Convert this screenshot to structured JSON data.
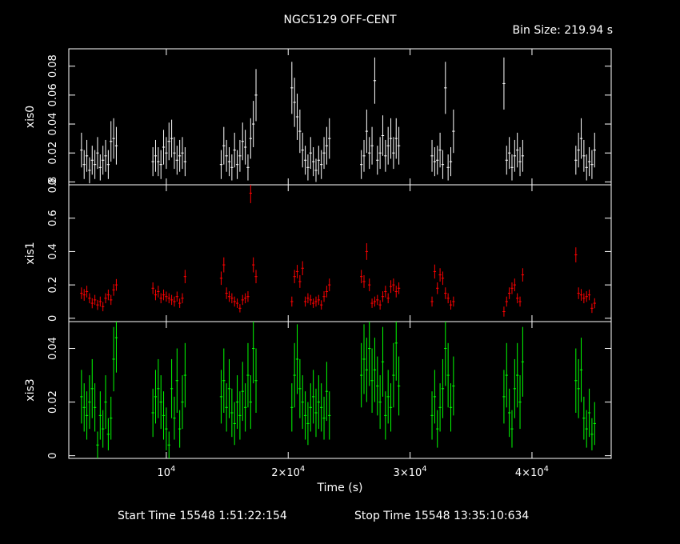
{
  "title": "NGC5129 OFF-CENT",
  "bin_size": "Bin Size: 219.94 s",
  "footer": {
    "start": "Start Time 15548  1:51:22:154",
    "stop": "Stop Time 15548 13:35:10:634"
  },
  "colors": {
    "xis0": "#ffffff",
    "xis1": "#ff0000",
    "xis3": "#00ff00",
    "frame": "#ffffff",
    "background": "#000000"
  },
  "chart_data": {
    "type": "scatter",
    "xlabel": "Time (s)",
    "xlim": [
      2000,
      46500
    ],
    "x_ticks": [
      {
        "value": 10000,
        "label": "10^4"
      },
      {
        "value": 20000,
        "label": "2×10^4"
      },
      {
        "value": 30000,
        "label": "3×10^4"
      },
      {
        "value": 40000,
        "label": "4×10^4"
      }
    ],
    "panels": [
      {
        "name": "xis0",
        "ylabel": "xis0",
        "ylim": [
          -0.002,
          0.092
        ],
        "y_ticks": [
          {
            "value": 0,
            "label": "0"
          },
          {
            "value": 0.02,
            "label": "0.02"
          },
          {
            "value": 0.04,
            "label": "0.04"
          },
          {
            "value": 0.06,
            "label": "0.06"
          },
          {
            "value": 0.08,
            "label": "0.08"
          }
        ],
        "x": [
          3040,
          3260,
          3480,
          3700,
          3920,
          4140,
          4360,
          4580,
          4800,
          5020,
          5240,
          5460,
          5680,
          5900,
          8900,
          9120,
          9340,
          9560,
          9780,
          10000,
          10220,
          10440,
          10660,
          10880,
          11100,
          11320,
          11540,
          14500,
          14720,
          14940,
          15160,
          15380,
          15600,
          15820,
          16040,
          16260,
          16480,
          16700,
          16920,
          17140,
          17360,
          20300,
          20520,
          20740,
          20960,
          21180,
          21400,
          21620,
          21840,
          22060,
          22280,
          22500,
          22720,
          22940,
          23160,
          23380,
          26000,
          26220,
          26440,
          26660,
          26880,
          27100,
          27320,
          27540,
          27760,
          27980,
          28200,
          28420,
          28640,
          28860,
          29080,
          31800,
          32020,
          32240,
          32460,
          32680,
          32900,
          33120,
          33340,
          33560,
          37700,
          37920,
          38140,
          38360,
          38580,
          38800,
          39020,
          39240,
          43600,
          43820,
          44040,
          44260,
          44480,
          44700,
          44920,
          45140
        ],
        "y": [
          0.022,
          0.012,
          0.018,
          0.008,
          0.015,
          0.012,
          0.02,
          0.01,
          0.015,
          0.018,
          0.012,
          0.028,
          0.03,
          0.025,
          0.014,
          0.018,
          0.014,
          0.012,
          0.024,
          0.02,
          0.028,
          0.03,
          0.02,
          0.015,
          0.018,
          0.02,
          0.014,
          0.012,
          0.025,
          0.018,
          0.014,
          0.01,
          0.022,
          0.012,
          0.018,
          0.028,
          0.024,
          0.01,
          0.03,
          0.04,
          0.06,
          0.065,
          0.055,
          0.045,
          0.035,
          0.022,
          0.015,
          0.01,
          0.02,
          0.014,
          0.008,
          0.015,
          0.012,
          0.02,
          0.025,
          0.03,
          0.012,
          0.018,
          0.035,
          0.02,
          0.025,
          0.07,
          0.015,
          0.02,
          0.032,
          0.018,
          0.025,
          0.03,
          0.02,
          0.03,
          0.025,
          0.018,
          0.014,
          0.015,
          0.022,
          0.012,
          0.065,
          0.01,
          0.014,
          0.035,
          0.068,
          0.015,
          0.02,
          0.01,
          0.018,
          0.022,
          0.014,
          0.018,
          0.015,
          0.022,
          0.03,
          0.018,
          0.01,
          0.014,
          0.012,
          0.022
        ],
        "yerr": [
          0.012,
          0.01,
          0.011,
          0.009,
          0.01,
          0.01,
          0.011,
          0.009,
          0.01,
          0.011,
          0.01,
          0.014,
          0.014,
          0.013,
          0.01,
          0.011,
          0.01,
          0.01,
          0.012,
          0.011,
          0.013,
          0.013,
          0.011,
          0.01,
          0.011,
          0.011,
          0.01,
          0.01,
          0.013,
          0.011,
          0.01,
          0.009,
          0.012,
          0.01,
          0.011,
          0.013,
          0.012,
          0.009,
          0.014,
          0.016,
          0.018,
          0.018,
          0.017,
          0.016,
          0.015,
          0.012,
          0.01,
          0.009,
          0.011,
          0.01,
          0.008,
          0.01,
          0.01,
          0.011,
          0.013,
          0.014,
          0.01,
          0.011,
          0.015,
          0.011,
          0.013,
          0.016,
          0.01,
          0.011,
          0.014,
          0.011,
          0.013,
          0.014,
          0.011,
          0.014,
          0.013,
          0.011,
          0.01,
          0.01,
          0.012,
          0.01,
          0.018,
          0.009,
          0.01,
          0.015,
          0.018,
          0.01,
          0.011,
          0.009,
          0.011,
          0.012,
          0.01,
          0.011,
          0.01,
          0.012,
          0.014,
          0.011,
          0.009,
          0.01,
          0.01,
          0.012
        ]
      },
      {
        "name": "xis1",
        "ylabel": "xis1",
        "ylim": [
          -0.02,
          0.8
        ],
        "y_ticks": [
          {
            "value": 0,
            "label": "0"
          },
          {
            "value": 0.2,
            "label": "0.2"
          },
          {
            "value": 0.4,
            "label": "0.4"
          },
          {
            "value": 0.6,
            "label": "0.6"
          },
          {
            "value": 0.8,
            "label": "0.8"
          }
        ],
        "x": [
          3040,
          3260,
          3480,
          3700,
          3920,
          4140,
          4360,
          4580,
          4800,
          5020,
          5240,
          5460,
          5680,
          5900,
          8900,
          9120,
          9340,
          9560,
          9780,
          10000,
          10220,
          10440,
          10660,
          10880,
          11100,
          11320,
          11540,
          14500,
          14720,
          14940,
          15160,
          15380,
          15600,
          15820,
          16040,
          16260,
          16480,
          16700,
          16920,
          17140,
          17360,
          20300,
          20520,
          20740,
          20960,
          21180,
          21400,
          21620,
          21840,
          22060,
          22280,
          22500,
          22720,
          22940,
          23160,
          23380,
          26000,
          26220,
          26440,
          26660,
          26880,
          27100,
          27320,
          27540,
          27760,
          27980,
          28200,
          28420,
          28640,
          28860,
          29080,
          31800,
          32020,
          32240,
          32460,
          32680,
          32900,
          33120,
          33340,
          33560,
          37700,
          37920,
          38140,
          38360,
          38580,
          38800,
          39020,
          39240,
          43600,
          43820,
          44040,
          44260,
          44480,
          44700,
          44920,
          45140
        ],
        "y": [
          0.15,
          0.14,
          0.16,
          0.12,
          0.09,
          0.11,
          0.08,
          0.1,
          0.07,
          0.12,
          0.14,
          0.11,
          0.17,
          0.2,
          0.18,
          0.14,
          0.16,
          0.12,
          0.14,
          0.13,
          0.12,
          0.11,
          0.1,
          0.13,
          0.09,
          0.12,
          0.25,
          0.24,
          0.32,
          0.15,
          0.13,
          0.12,
          0.1,
          0.09,
          0.06,
          0.11,
          0.12,
          0.13,
          0.75,
          0.32,
          0.25,
          0.1,
          0.25,
          0.28,
          0.22,
          0.3,
          0.1,
          0.12,
          0.11,
          0.09,
          0.1,
          0.11,
          0.08,
          0.13,
          0.16,
          0.2,
          0.25,
          0.22,
          0.4,
          0.2,
          0.09,
          0.1,
          0.11,
          0.08,
          0.13,
          0.16,
          0.12,
          0.19,
          0.2,
          0.16,
          0.18,
          0.1,
          0.28,
          0.18,
          0.26,
          0.24,
          0.15,
          0.12,
          0.08,
          0.1,
          0.04,
          0.1,
          0.15,
          0.18,
          0.2,
          0.12,
          0.1,
          0.26,
          0.38,
          0.15,
          0.14,
          0.12,
          0.13,
          0.14,
          0.06,
          0.09
        ],
        "yerr": [
          0.035,
          0.035,
          0.035,
          0.03,
          0.03,
          0.03,
          0.03,
          0.03,
          0.028,
          0.03,
          0.032,
          0.03,
          0.035,
          0.035,
          0.035,
          0.032,
          0.035,
          0.03,
          0.032,
          0.03,
          0.03,
          0.03,
          0.03,
          0.03,
          0.028,
          0.03,
          0.04,
          0.04,
          0.045,
          0.035,
          0.032,
          0.03,
          0.03,
          0.028,
          0.025,
          0.03,
          0.03,
          0.032,
          0.06,
          0.045,
          0.04,
          0.03,
          0.04,
          0.04,
          0.038,
          0.042,
          0.03,
          0.03,
          0.03,
          0.028,
          0.03,
          0.03,
          0.028,
          0.032,
          0.035,
          0.038,
          0.04,
          0.038,
          0.05,
          0.038,
          0.028,
          0.03,
          0.03,
          0.028,
          0.032,
          0.035,
          0.03,
          0.038,
          0.038,
          0.035,
          0.035,
          0.03,
          0.042,
          0.035,
          0.04,
          0.04,
          0.035,
          0.03,
          0.028,
          0.03,
          0.03,
          0.03,
          0.035,
          0.035,
          0.038,
          0.03,
          0.03,
          0.04,
          0.045,
          0.035,
          0.035,
          0.03,
          0.032,
          0.032,
          0.028,
          0.03
        ]
      },
      {
        "name": "xis3",
        "ylabel": "xis3",
        "ylim": [
          -0.001,
          0.05
        ],
        "y_ticks": [
          {
            "value": 0,
            "label": "0"
          },
          {
            "value": 0.02,
            "label": "0.02"
          },
          {
            "value": 0.04,
            "label": "0.04"
          }
        ],
        "x": [
          3040,
          3260,
          3480,
          3700,
          3920,
          4140,
          4360,
          4580,
          4800,
          5020,
          5240,
          5460,
          5680,
          5900,
          8900,
          9120,
          9340,
          9560,
          9780,
          10000,
          10220,
          10440,
          10660,
          10880,
          11100,
          11320,
          11540,
          14500,
          14720,
          14940,
          15160,
          15380,
          15600,
          15820,
          16040,
          16260,
          16480,
          16700,
          16920,
          17140,
          17360,
          20300,
          20520,
          20740,
          20960,
          21180,
          21400,
          21620,
          21840,
          22060,
          22280,
          22500,
          22720,
          22940,
          23160,
          23380,
          26000,
          26220,
          26440,
          26660,
          26880,
          27100,
          27320,
          27540,
          27760,
          27980,
          28200,
          28420,
          28640,
          28860,
          29080,
          31800,
          32020,
          32240,
          32460,
          32680,
          32900,
          33120,
          33340,
          33560,
          37700,
          37920,
          38140,
          38360,
          38580,
          38800,
          39020,
          39240,
          43600,
          43820,
          44040,
          44260,
          44480,
          44700,
          44920,
          45140
        ],
        "y": [
          0.022,
          0.018,
          0.015,
          0.02,
          0.025,
          0.018,
          0.004,
          0.015,
          0.01,
          0.02,
          0.008,
          0.014,
          0.036,
          0.044,
          0.016,
          0.022,
          0.025,
          0.02,
          0.015,
          0.01,
          0.004,
          0.025,
          0.014,
          0.028,
          0.01,
          0.02,
          0.03,
          0.022,
          0.028,
          0.018,
          0.025,
          0.016,
          0.012,
          0.02,
          0.015,
          0.024,
          0.018,
          0.03,
          0.02,
          0.04,
          0.028,
          0.018,
          0.03,
          0.036,
          0.025,
          0.02,
          0.015,
          0.012,
          0.018,
          0.022,
          0.016,
          0.02,
          0.018,
          0.014,
          0.024,
          0.015,
          0.03,
          0.036,
          0.032,
          0.04,
          0.028,
          0.032,
          0.026,
          0.02,
          0.035,
          0.015,
          0.022,
          0.018,
          0.03,
          0.042,
          0.026,
          0.015,
          0.022,
          0.01,
          0.018,
          0.025,
          0.04,
          0.03,
          0.018,
          0.026,
          0.022,
          0.03,
          0.016,
          0.01,
          0.025,
          0.03,
          0.02,
          0.035,
          0.028,
          0.025,
          0.032,
          0.014,
          0.01,
          0.016,
          0.008,
          0.012
        ],
        "yerr": [
          0.01,
          0.009,
          0.009,
          0.01,
          0.011,
          0.009,
          0.005,
          0.009,
          0.007,
          0.01,
          0.006,
          0.008,
          0.012,
          0.013,
          0.009,
          0.01,
          0.011,
          0.01,
          0.009,
          0.008,
          0.005,
          0.011,
          0.008,
          0.012,
          0.007,
          0.01,
          0.012,
          0.01,
          0.012,
          0.009,
          0.011,
          0.009,
          0.008,
          0.01,
          0.009,
          0.011,
          0.009,
          0.012,
          0.01,
          0.013,
          0.012,
          0.009,
          0.012,
          0.013,
          0.011,
          0.01,
          0.009,
          0.008,
          0.009,
          0.01,
          0.009,
          0.01,
          0.009,
          0.008,
          0.011,
          0.009,
          0.012,
          0.013,
          0.012,
          0.014,
          0.012,
          0.012,
          0.011,
          0.01,
          0.013,
          0.009,
          0.01,
          0.009,
          0.012,
          0.014,
          0.011,
          0.009,
          0.01,
          0.007,
          0.009,
          0.011,
          0.014,
          0.012,
          0.009,
          0.011,
          0.01,
          0.012,
          0.009,
          0.007,
          0.011,
          0.012,
          0.01,
          0.013,
          0.012,
          0.011,
          0.012,
          0.008,
          0.007,
          0.009,
          0.006,
          0.008
        ]
      }
    ]
  }
}
